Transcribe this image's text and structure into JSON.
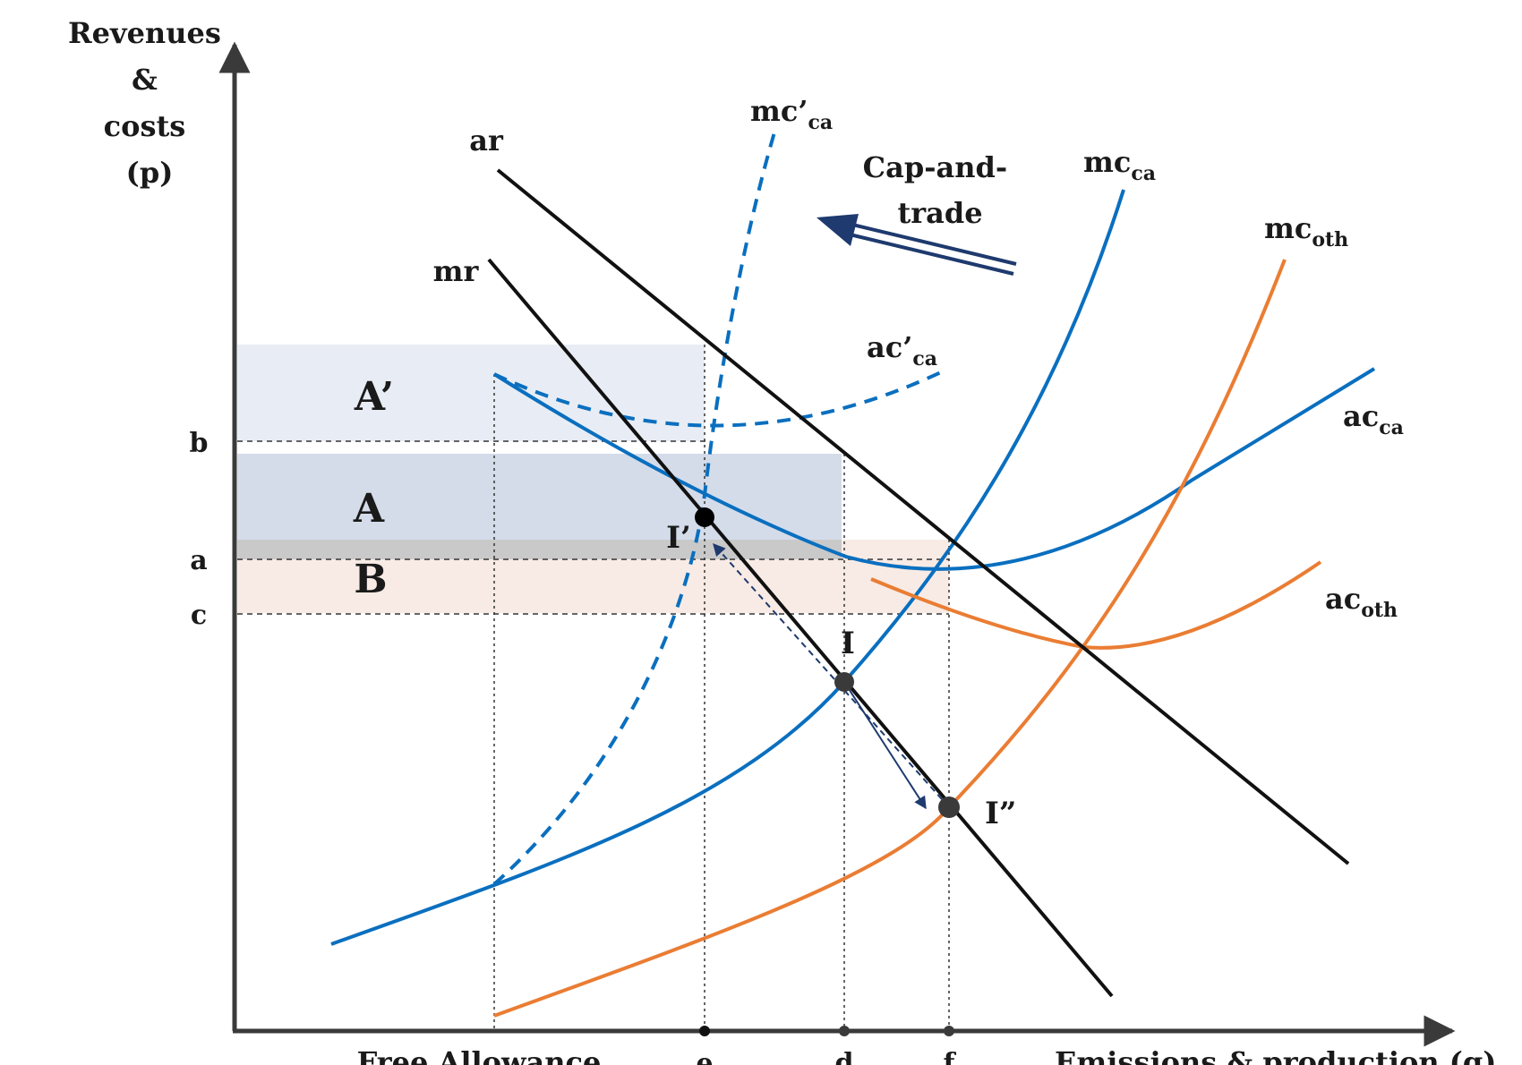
{
  "axes": {
    "y_label_lines": [
      "Revenues",
      "&",
      "costs",
      "(p)"
    ],
    "x_label": "Emissions & production (q)",
    "free_allowance_label": "Free Allowance"
  },
  "y_ticks": {
    "b": "b",
    "a": "a",
    "c": "c"
  },
  "x_ticks": {
    "e": "e",
    "d": "d",
    "f": "f"
  },
  "regions": {
    "a_prime": "A’",
    "a": "A",
    "b": "B"
  },
  "curves": {
    "ar": {
      "label": "ar"
    },
    "mr": {
      "label": "mr"
    },
    "mc_prime_ca": {
      "main": "mc’",
      "sub": "ca"
    },
    "ac_prime_ca": {
      "main": "ac’",
      "sub": "ca"
    },
    "mc_ca": {
      "main": "mc",
      "sub": "ca"
    },
    "ac_ca": {
      "main": "ac",
      "sub": "ca"
    },
    "mc_oth": {
      "main": "mc",
      "sub": "oth"
    },
    "ac_oth": {
      "main": "ac",
      "sub": "oth"
    }
  },
  "points": {
    "i": "I",
    "i_prime": "I’",
    "i_double_prime": "I”"
  },
  "annotation": {
    "lines": [
      "Cap-and-",
      "trade"
    ]
  },
  "colors": {
    "black": "#111111",
    "blue": "#0a6fbf",
    "orange": "#ea7d33",
    "navy": "#1e3a6e",
    "region_a_prime": "#e8edf5",
    "region_a": "#d4dcea",
    "region_b": "#f8ebe5",
    "overlap": "#c9c9c9"
  }
}
